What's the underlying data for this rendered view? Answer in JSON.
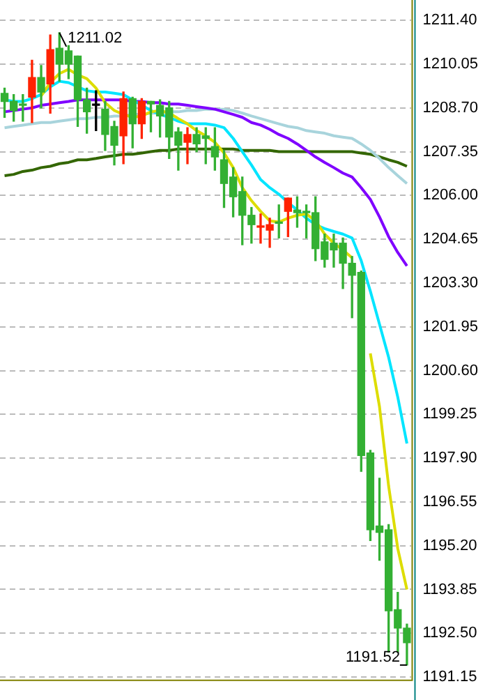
{
  "chart_data": {
    "type": "candlestick",
    "categories": [
      null,
      null,
      null,
      null,
      null,
      null,
      null,
      null,
      null,
      null,
      null,
      null,
      null,
      null,
      null,
      null,
      null,
      null,
      null,
      null,
      null,
      null,
      null,
      null,
      null,
      null,
      null,
      null,
      null,
      null,
      null,
      null,
      null,
      null,
      null,
      null,
      null,
      null,
      null,
      null,
      null,
      null,
      null,
      null,
      null
    ],
    "ohlc": [
      [
        1209.15,
        1209.31,
        1208.41,
        1208.9
      ],
      [
        1208.9,
        1209.11,
        1208.29,
        1208.62
      ],
      [
        1208.82,
        1209.11,
        1208.29,
        1208.78
      ],
      [
        1209.03,
        1210.17,
        1208.25,
        1209.64
      ],
      [
        1209.64,
        1210.01,
        1208.7,
        1209.19
      ],
      [
        1209.44,
        1210.95,
        1208.54,
        1210.5
      ],
      [
        1210.54,
        1211.02,
        1209.52,
        1210.05
      ],
      [
        1210.46,
        1210.62,
        1209.6,
        1210.05
      ],
      [
        1210.3,
        1210.3,
        1208.13,
        1208.95
      ],
      [
        1208.95,
        1209.31,
        1207.92,
        1208.58
      ],
      [
        1208.78,
        1209.23,
        1208.0,
        1208.78
      ],
      [
        1208.66,
        1208.9,
        1207.39,
        1207.88
      ],
      [
        1208.13,
        1208.29,
        1206.94,
        1207.55
      ],
      [
        1207.84,
        1209.19,
        1206.98,
        1208.99
      ],
      [
        1208.99,
        1209.03,
        1207.47,
        1208.21
      ],
      [
        1208.21,
        1208.99,
        1207.76,
        1208.9
      ],
      [
        1208.9,
        1208.9,
        1207.96,
        1208.82
      ],
      [
        1208.78,
        1208.95,
        1207.8,
        1208.45
      ],
      [
        1208.7,
        1208.9,
        1207.14,
        1207.8
      ],
      [
        1207.96,
        1208.09,
        1206.78,
        1207.55
      ],
      [
        1207.64,
        1208.09,
        1206.98,
        1207.88
      ],
      [
        1207.88,
        1208.09,
        1207.35,
        1207.59
      ],
      [
        1207.84,
        1208.09,
        1206.98,
        1207.76
      ],
      [
        1207.51,
        1208.09,
        1206.78,
        1207.19
      ],
      [
        1207.1,
        1207.39,
        1205.63,
        1206.37
      ],
      [
        1206.57,
        1206.86,
        1205.34,
        1205.96
      ],
      [
        1206.12,
        1206.57,
        1204.48,
        1205.39
      ],
      [
        1205.39,
        1205.63,
        1204.53,
        1205.1
      ],
      [
        1205.02,
        1205.43,
        1204.53,
        1205.06
      ],
      [
        1204.93,
        1205.3,
        1204.4,
        1205.1
      ],
      [
        1205.18,
        1205.71,
        1204.69,
        1205.14
      ],
      [
        1205.51,
        1205.92,
        1204.73,
        1205.92
      ],
      [
        1205.55,
        1205.96,
        1205.02,
        1205.47
      ],
      [
        1205.51,
        1205.71,
        1204.69,
        1205.47
      ],
      [
        1205.47,
        1205.96,
        1203.99,
        1204.36
      ],
      [
        1204.57,
        1204.81,
        1203.79,
        1204.03
      ],
      [
        1204.53,
        1204.81,
        1203.79,
        1204.32
      ],
      [
        1204.53,
        1204.69,
        1203.13,
        1203.91
      ],
      [
        1203.91,
        1204.12,
        1202.23,
        1203.54
      ],
      [
        1203.63,
        1203.67,
        1197.49,
        1197.98
      ],
      [
        1198.06,
        1198.14,
        1195.36,
        1195.69
      ],
      [
        1195.81,
        1197.28,
        1194.75,
        1195.61
      ],
      [
        1195.69,
        1195.85,
        1191.92,
        1193.19
      ],
      [
        1193.23,
        1193.76,
        1191.92,
        1192.66
      ],
      [
        1192.66,
        1192.78,
        1191.52,
        1192.21
      ]
    ],
    "colors": [
      "#33b033",
      "#33b033",
      "#33b033",
      "#ff2200",
      "#33b033",
      "#ff2200",
      "#33b033",
      "#33b033",
      "#33b033",
      "#33b033",
      "#000000",
      "#33b033",
      "#33b033",
      "#ff2200",
      "#33b033",
      "#ff2200",
      "#33b033",
      "#33b033",
      "#33b033",
      "#33b033",
      "#ff2200",
      "#33b033",
      "#33b033",
      "#33b033",
      "#33b033",
      "#33b033",
      "#33b033",
      "#33b033",
      "#ff2200",
      "#ff2200",
      "#33b033",
      "#ff2200",
      "#33b033",
      "#33b033",
      "#33b033",
      "#33b033",
      "#33b033",
      "#33b033",
      "#33b033",
      "#33b033",
      "#33b033",
      "#33b033",
      "#33b033",
      "#33b033",
      "#33b033"
    ],
    "series": [
      {
        "type": "line",
        "color": "#dddd00",
        "values": [
          null,
          null,
          null,
          null,
          1209.07,
          1209.48,
          1209.76,
          1209.89,
          1209.72,
          1209.6,
          1209.31,
          1208.86,
          1208.62,
          1208.5,
          1208.41,
          1208.45,
          1208.58,
          1208.62,
          1208.54,
          1208.37,
          1208.21,
          1208.0,
          1207.84,
          1207.64,
          1207.31,
          1206.86,
          1206.24,
          1205.84,
          1205.51,
          1205.22,
          1205.18,
          1205.3,
          1205.39,
          1205.43,
          1205.22,
          1204.81,
          1204.53,
          1204.32,
          1204.08,
          null,
          1201.13,
          1199.49,
          1197.04,
          1195.11,
          1193.85
        ]
      },
      {
        "type": "line",
        "color": "#00e5ff",
        "values": [
          1208.95,
          1208.9,
          1208.9,
          1208.99,
          1209.11,
          1209.35,
          1209.52,
          1209.48,
          1209.35,
          1209.23,
          1209.19,
          1209.19,
          1209.15,
          1209.11,
          1208.95,
          1208.78,
          1208.62,
          1208.5,
          1208.41,
          1208.29,
          1208.21,
          1208.21,
          1208.21,
          1208.17,
          1208.09,
          1207.76,
          1207.35,
          1206.94,
          1206.49,
          1206.24,
          1206.04,
          1205.79,
          1205.55,
          1205.3,
          1205.1,
          1204.98,
          1204.89,
          1204.81,
          1204.69,
          1203.99,
          1203.05,
          1202.03,
          1201.01,
          1199.78,
          1198.35
        ]
      },
      {
        "type": "line",
        "color": "#7f00ff",
        "values": [
          1208.58,
          1208.62,
          1208.66,
          1208.7,
          1208.78,
          1208.82,
          1208.86,
          1208.9,
          1208.95,
          1208.95,
          1208.95,
          1208.95,
          1208.95,
          1208.95,
          1208.9,
          1208.9,
          1208.86,
          1208.86,
          1208.82,
          1208.82,
          1208.78,
          1208.74,
          1208.7,
          1208.66,
          1208.58,
          1208.5,
          1208.41,
          1208.25,
          1208.17,
          1208.04,
          1207.88,
          1207.76,
          1207.59,
          1207.39,
          1207.19,
          1207.02,
          1206.86,
          1206.69,
          1206.57,
          1206.24,
          1205.88,
          1205.34,
          1204.73,
          1204.24,
          1203.83
        ]
      },
      {
        "type": "line",
        "color": "#a8d4dc",
        "values": [
          1208.09,
          1208.13,
          1208.17,
          1208.21,
          1208.25,
          1208.25,
          1208.29,
          1208.33,
          1208.37,
          1208.37,
          1208.41,
          1208.41,
          1208.45,
          1208.45,
          1208.5,
          1208.5,
          1208.54,
          1208.54,
          1208.58,
          1208.58,
          1208.62,
          1208.62,
          1208.66,
          1208.66,
          1208.66,
          1208.62,
          1208.54,
          1208.45,
          1208.37,
          1208.29,
          1208.21,
          1208.13,
          1208.09,
          1208.0,
          1207.96,
          1207.92,
          1207.84,
          1207.8,
          1207.76,
          1207.59,
          1207.39,
          1207.14,
          1206.86,
          1206.61,
          1206.37
        ]
      },
      {
        "type": "line",
        "color": "#336600",
        "values": [
          1206.61,
          1206.65,
          1206.74,
          1206.78,
          1206.86,
          1206.9,
          1206.98,
          1207.02,
          1207.1,
          1207.1,
          1207.14,
          1207.19,
          1207.23,
          1207.27,
          1207.27,
          1207.31,
          1207.35,
          1207.39,
          1207.39,
          1207.43,
          1207.43,
          1207.43,
          1207.43,
          1207.43,
          1207.43,
          1207.43,
          1207.39,
          1207.39,
          1207.39,
          1207.39,
          1207.35,
          1207.35,
          1207.35,
          1207.35,
          1207.35,
          1207.35,
          1207.35,
          1207.35,
          1207.35,
          1207.31,
          1207.27,
          1207.19,
          1207.1,
          1207.02,
          1206.9
        ]
      }
    ],
    "ylim": [
      1191.07,
      1211.4
    ],
    "yticks": [
      {
        "value": 1191.15,
        "label": "1191.15"
      },
      {
        "value": 1192.5,
        "label": "1192.50"
      },
      1193.85,
      {
        "value": 1195.2,
        "label": "1195.20"
      },
      1196.55,
      {
        "value": 1197.9,
        "label": "1197.90"
      },
      1199.25,
      {
        "value": 1200.6,
        "label": "1200.60"
      },
      1201.95,
      {
        "value": 1203.3,
        "label": "1203.30"
      },
      1204.65,
      {
        "value": 1206,
        "label": "1206.00"
      },
      1207.35,
      {
        "value": 1208.7,
        "label": "1208.70"
      },
      1210.05,
      {
        "value": 1211.4,
        "label": "1211.40"
      }
    ],
    "grid": "y",
    "tick_labels": "y",
    "legend": false,
    "annotations": [
      "1211.02",
      "1191.52"
    ]
  }
}
